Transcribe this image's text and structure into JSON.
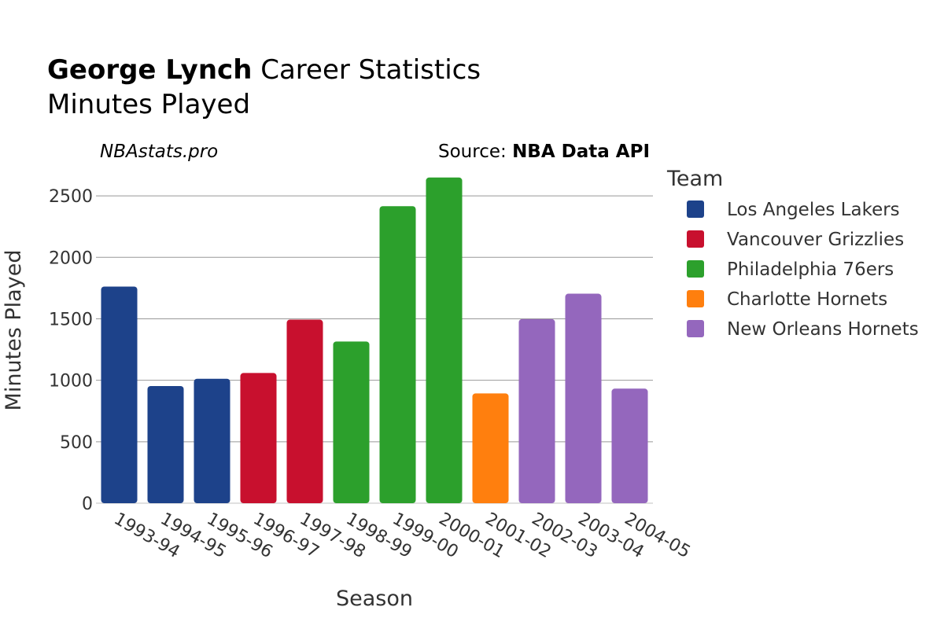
{
  "header": {
    "title_bold": "George Lynch",
    "title_rest": " Career Statistics",
    "subtitle": "Minutes Played",
    "brand": "NBAstats.pro",
    "source_prefix": "Source: ",
    "source_name": "NBA Data API"
  },
  "legend": {
    "title": "Team",
    "items": [
      {
        "label": "Los Angeles Lakers",
        "color": "#1d428a"
      },
      {
        "label": "Vancouver Grizzlies",
        "color": "#c8102e"
      },
      {
        "label": "Philadelphia 76ers",
        "color": "#2ca02c"
      },
      {
        "label": "Charlotte Hornets",
        "color": "#ff7f0e"
      },
      {
        "label": "New Orleans Hornets",
        "color": "#9467bd"
      }
    ]
  },
  "chart_data": {
    "type": "bar",
    "title": "George Lynch Career Statistics",
    "subtitle": "Minutes Played",
    "xlabel": "Season",
    "ylabel": "Minutes Played",
    "ylim": [
      0,
      2750
    ],
    "yticks": [
      0,
      500,
      1000,
      1500,
      2000,
      2500
    ],
    "categories": [
      "1993-94",
      "1994-95",
      "1995-96",
      "1996-97",
      "1997-98",
      "1998-99",
      "1999-00",
      "2000-01",
      "2001-02",
      "2002-03",
      "2003-04",
      "2004-05"
    ],
    "values": [
      1762,
      953,
      1012,
      1059,
      1493,
      1315,
      2416,
      2649,
      893,
      1497,
      1704,
      932
    ],
    "teams": [
      "Los Angeles Lakers",
      "Los Angeles Lakers",
      "Los Angeles Lakers",
      "Vancouver Grizzlies",
      "Vancouver Grizzlies",
      "Philadelphia 76ers",
      "Philadelphia 76ers",
      "Philadelphia 76ers",
      "Charlotte Hornets",
      "New Orleans Hornets",
      "New Orleans Hornets",
      "New Orleans Hornets"
    ],
    "grid": true,
    "legend_position": "right"
  }
}
